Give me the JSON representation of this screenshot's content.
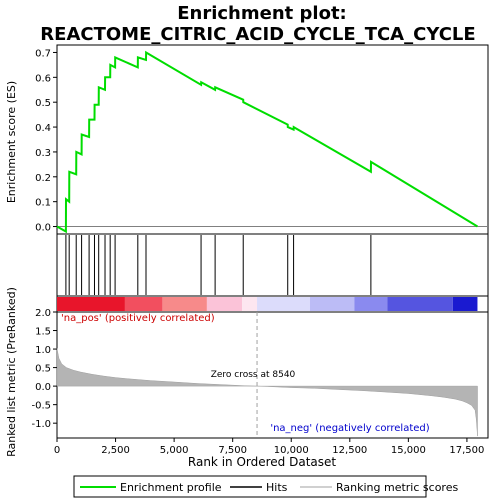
{
  "chart_data": {
    "type": "line",
    "title_line1": "Enrichment plot:",
    "title_line2": "REACTOME_CITRIC_ACID_CYCLE_TCA_CYCLE",
    "es_panel": {
      "ylabel": "Enrichment score (ES)",
      "ylim": [
        -0.03,
        0.73
      ],
      "yticks": [
        0.0,
        0.1,
        0.2,
        0.3,
        0.4,
        0.5,
        0.6,
        0.7
      ],
      "ytick_labels": [
        "0.0",
        "0.1",
        "0.2",
        "0.3",
        "0.4",
        "0.5",
        "0.6",
        "0.7"
      ],
      "series_name": "Enrichment profile",
      "line_color": "#00dd00",
      "x": [
        0,
        380,
        385,
        520,
        525,
        820,
        825,
        1050,
        1055,
        1370,
        1375,
        1600,
        1605,
        1780,
        1785,
        2050,
        2055,
        2270,
        2275,
        2480,
        2485,
        3450,
        3455,
        3800,
        3805,
        6150,
        6155,
        6750,
        6755,
        7950,
        7955,
        9850,
        9855,
        10100,
        10105,
        13400,
        13405,
        17950
      ],
      "y": [
        0.0,
        -0.02,
        0.11,
        0.1,
        0.22,
        0.21,
        0.3,
        0.29,
        0.37,
        0.36,
        0.43,
        0.43,
        0.49,
        0.49,
        0.56,
        0.55,
        0.6,
        0.6,
        0.65,
        0.64,
        0.68,
        0.64,
        0.68,
        0.67,
        0.7,
        0.57,
        0.58,
        0.55,
        0.56,
        0.51,
        0.5,
        0.41,
        0.4,
        0.39,
        0.4,
        0.22,
        0.26,
        0.0
      ]
    },
    "hits_panel": {
      "series_name": "Hits",
      "positions": [
        380,
        520,
        820,
        1050,
        1370,
        1600,
        1780,
        2050,
        2270,
        2480,
        3450,
        3800,
        6150,
        6750,
        7950,
        9850,
        10100,
        13400
      ]
    },
    "color_bar": {
      "segments": [
        {
          "start": 0,
          "end": 2900,
          "color": "#e8152b"
        },
        {
          "start": 2900,
          "end": 4500,
          "color": "#f24f5f"
        },
        {
          "start": 4500,
          "end": 6400,
          "color": "#f78a8a"
        },
        {
          "start": 6400,
          "end": 7900,
          "color": "#fbc3d8"
        },
        {
          "start": 7900,
          "end": 8540,
          "color": "#fde6f0"
        },
        {
          "start": 8540,
          "end": 10800,
          "color": "#dcdcfb"
        },
        {
          "start": 10800,
          "end": 12700,
          "color": "#bcbcf6"
        },
        {
          "start": 12700,
          "end": 14100,
          "color": "#8a8aef"
        },
        {
          "start": 14100,
          "end": 16900,
          "color": "#5555e0"
        },
        {
          "start": 16900,
          "end": 17950,
          "color": "#1a1ad0"
        }
      ]
    },
    "metric_panel": {
      "ylabel": "Ranked list metric (PreRanked)",
      "ylim": [
        -1.4,
        2.0
      ],
      "yticks": [
        2.0,
        1.5,
        1.0,
        0.5,
        0.0,
        -0.5,
        -1.0
      ],
      "ytick_labels": [
        "2.0",
        "1.5",
        "1.0",
        "0.5",
        "0.0",
        "-0.5",
        "-1.0"
      ],
      "series_name": "Ranking metric scores",
      "x": [
        0,
        80,
        200,
        400,
        700,
        1000,
        1500,
        2000,
        2500,
        3000,
        4000,
        5000,
        6000,
        7000,
        8000,
        8540,
        9000,
        10000,
        11000,
        12000,
        13000,
        14000,
        15000,
        16000,
        16500,
        17000,
        17300,
        17500,
        17700,
        17850,
        17900,
        17950
      ],
      "y": [
        1.02,
        0.75,
        0.6,
        0.5,
        0.43,
        0.38,
        0.32,
        0.27,
        0.23,
        0.2,
        0.15,
        0.11,
        0.07,
        0.04,
        0.01,
        0.0,
        -0.01,
        -0.04,
        -0.06,
        -0.09,
        -0.12,
        -0.16,
        -0.2,
        -0.26,
        -0.3,
        -0.35,
        -0.4,
        -0.45,
        -0.52,
        -0.65,
        -0.9,
        -1.35
      ],
      "pos_label": "'na_pos' (positively correlated)",
      "neg_label": "'na_neg' (negatively correlated)",
      "zero_cross_label": "Zero cross at 8540",
      "zero_cross": 8540
    },
    "xaxis": {
      "xlabel": "Rank in Ordered Dataset",
      "xlim": [
        0,
        18400
      ],
      "xticks": [
        0,
        2500,
        5000,
        7500,
        10000,
        12500,
        15000,
        17500
      ],
      "xtick_labels": [
        "0",
        "2,500",
        "5,000",
        "7,500",
        "10,000",
        "12,500",
        "15,000",
        "17,500"
      ]
    },
    "legend": {
      "placement": "bottom",
      "entries": [
        "Enrichment profile",
        "Hits",
        "Ranking metric scores"
      ]
    }
  }
}
